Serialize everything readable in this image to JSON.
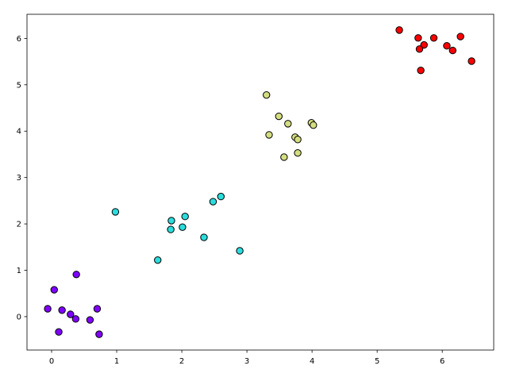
{
  "chart_data": {
    "type": "scatter",
    "series": [
      {
        "color": "#8000ff",
        "x": [
          -0.06,
          0.04,
          0.38,
          0.16,
          0.29,
          0.37,
          0.11,
          0.59,
          0.7,
          0.73
        ],
        "values": [
          0.17,
          0.58,
          0.91,
          0.14,
          0.05,
          -0.05,
          -0.33,
          -0.07,
          0.17,
          -0.38
        ]
      },
      {
        "color": "#2adddd",
        "x": [
          0.98,
          1.63,
          1.84,
          1.83,
          2.05,
          2.01,
          2.34,
          2.48,
          2.6,
          2.89
        ],
        "values": [
          2.26,
          1.22,
          2.07,
          1.88,
          2.16,
          1.93,
          1.71,
          2.48,
          2.59,
          1.42
        ]
      },
      {
        "color": "#d4dd80",
        "x": [
          3.3,
          3.49,
          3.63,
          3.34,
          3.74,
          3.78,
          3.57,
          3.78,
          3.99,
          4.02
        ],
        "values": [
          4.78,
          4.32,
          4.16,
          3.92,
          3.87,
          3.82,
          3.44,
          3.53,
          4.18,
          4.13
        ]
      },
      {
        "color": "#ff0000",
        "x": [
          5.34,
          5.63,
          5.87,
          5.72,
          5.65,
          6.07,
          6.16,
          6.28,
          6.45,
          5.67
        ],
        "values": [
          6.18,
          6.01,
          6.01,
          5.86,
          5.77,
          5.84,
          5.74,
          6.04,
          5.51,
          5.31
        ]
      }
    ],
    "xlim": [
      -0.378,
      6.79
    ],
    "ylim": [
      -0.72,
      6.52
    ],
    "xticks": [
      0,
      1,
      2,
      3,
      4,
      5,
      6
    ],
    "yticks": [
      0,
      1,
      2,
      3,
      4,
      5,
      6
    ],
    "grid": false
  }
}
